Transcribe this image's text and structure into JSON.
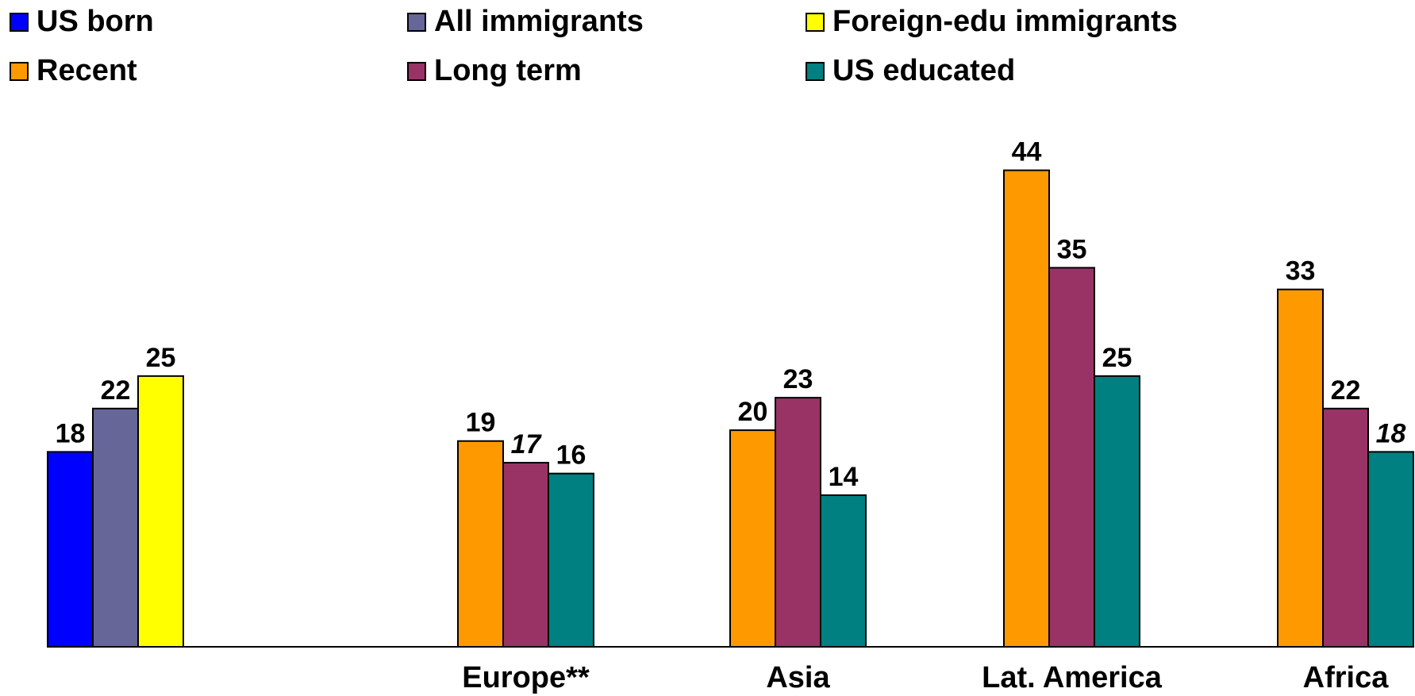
{
  "chart_data": {
    "type": "bar",
    "legend": [
      {
        "name": "US born",
        "color": "#0000FF"
      },
      {
        "name": "All immigrants",
        "color": "#666699"
      },
      {
        "name": "Foreign-edu immigrants",
        "color": "#FFFF00"
      },
      {
        "name": "Recent",
        "color": "#FF9900"
      },
      {
        "name": "Long term",
        "color": "#993366"
      },
      {
        "name": "US educated",
        "color": "#008080"
      }
    ],
    "ylim": [
      0,
      48
    ],
    "groups": [
      {
        "category": "",
        "bars": [
          {
            "series": "US born",
            "value": 18,
            "italic": false
          },
          {
            "series": "All immigrants",
            "value": 22,
            "italic": false
          },
          {
            "series": "Foreign-edu immigrants",
            "value": 25,
            "italic": false
          }
        ]
      },
      {
        "category": "Europe**",
        "bars": [
          {
            "series": "Recent",
            "value": 19,
            "italic": false
          },
          {
            "series": "Long term",
            "value": 17,
            "italic": true
          },
          {
            "series": "US educated",
            "value": 16,
            "italic": false
          }
        ]
      },
      {
        "category": "Asia",
        "bars": [
          {
            "series": "Recent",
            "value": 20,
            "italic": false
          },
          {
            "series": "Long term",
            "value": 23,
            "italic": false
          },
          {
            "series": "US educated",
            "value": 14,
            "italic": false
          }
        ]
      },
      {
        "category": "Lat. America",
        "bars": [
          {
            "series": "Recent",
            "value": 44,
            "italic": false
          },
          {
            "series": "Long term",
            "value": 35,
            "italic": false
          },
          {
            "series": "US educated",
            "value": 25,
            "italic": false
          }
        ]
      },
      {
        "category": "Africa",
        "bars": [
          {
            "series": "Recent",
            "value": 33,
            "italic": false
          },
          {
            "series": "Long term",
            "value": 22,
            "italic": false
          },
          {
            "series": "US educated",
            "value": 18,
            "italic": true
          }
        ]
      }
    ]
  }
}
